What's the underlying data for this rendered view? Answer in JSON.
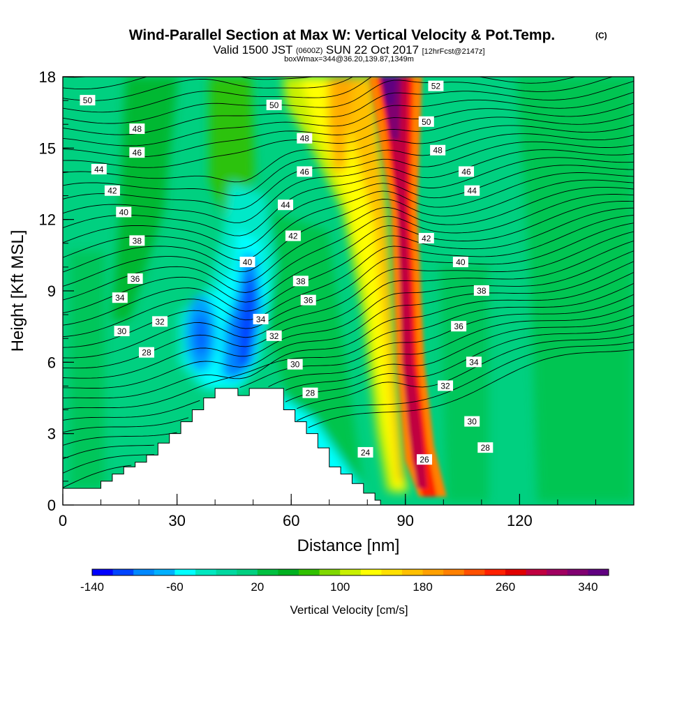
{
  "header": {
    "title": "Wind-Parallel Section at Max W: Vertical Velocity & Pot.Temp.",
    "copyright": "(C)",
    "valid_prefix": "Valid 1500 JST",
    "valid_utc": "(0600Z)",
    "valid_date": "SUN 22 Oct 2017",
    "forecast": "[12hrFcst@2147z]",
    "boxwmax": "boxWmax=344@36.20,139.87,1349m"
  },
  "chart_data": {
    "type": "heatmap",
    "title": "Wind-Parallel Section at Max W: Vertical Velocity & Pot.Temp.",
    "xlabel": "Distance [nm]",
    "ylabel": "Height [Kft MSL]",
    "xlim": [
      0,
      150
    ],
    "ylim": [
      0,
      18
    ],
    "x_ticks": [
      "0",
      "30",
      "60",
      "90",
      "120"
    ],
    "x_tick_values": [
      0,
      30,
      60,
      90,
      120
    ],
    "y_ticks": [
      "0",
      "3",
      "6",
      "9",
      "12",
      "15",
      "18"
    ],
    "y_tick_values": [
      0,
      3,
      6,
      9,
      12,
      15,
      18
    ],
    "colorbar": {
      "label": "Vertical Velocity [cm/s]",
      "levels_min": -140,
      "levels_step": 20,
      "tick_labels": [
        "-140",
        "-60",
        "20",
        "100",
        "180",
        "260",
        "340"
      ],
      "tick_values": [
        -140,
        -60,
        20,
        100,
        180,
        260,
        340
      ],
      "colors": [
        "#0000ff",
        "#0044ff",
        "#0088ff",
        "#00b0ff",
        "#00ffff",
        "#00e8c0",
        "#00d8a0",
        "#00d080",
        "#00c040",
        "#00b020",
        "#30c000",
        "#80d800",
        "#c8f000",
        "#ffff00",
        "#ffe000",
        "#ffc000",
        "#ffa000",
        "#ff8000",
        "#ff5000",
        "#ff2000",
        "#e00000",
        "#c00040",
        "#a00060",
        "#800070",
        "#600080"
      ]
    },
    "terrain_profile": {
      "x": [
        0,
        7,
        10,
        13,
        16,
        19,
        22,
        25,
        28,
        31,
        34,
        37,
        40,
        43,
        46,
        49,
        52,
        55,
        58,
        61,
        64,
        67,
        70,
        73,
        76,
        79,
        82
      ],
      "height": [
        0.7,
        0.7,
        1.0,
        1.3,
        1.6,
        1.8,
        2.1,
        2.6,
        3.0,
        3.5,
        4.0,
        4.5,
        4.9,
        4.9,
        4.6,
        4.9,
        4.9,
        4.9,
        4.0,
        3.5,
        3.0,
        2.4,
        1.6,
        1.3,
        0.9,
        0.5,
        0.2
      ]
    },
    "w_features": [
      {
        "name": "updraft",
        "x": 85,
        "z": 10,
        "value": 344
      },
      {
        "name": "downdraft",
        "x": 49,
        "z": 6,
        "value": -140
      },
      {
        "name": "downdraft",
        "x": 36,
        "z": 7,
        "value": -100
      }
    ],
    "theta_labels": [
      {
        "text": "50",
        "x": 6.5,
        "z": 17.0
      },
      {
        "text": "48",
        "x": 19.5,
        "z": 15.8
      },
      {
        "text": "46",
        "x": 19.5,
        "z": 14.8
      },
      {
        "text": "44",
        "x": 9.5,
        "z": 14.1
      },
      {
        "text": "42",
        "x": 13,
        "z": 13.2
      },
      {
        "text": "40",
        "x": 16,
        "z": 12.3
      },
      {
        "text": "38",
        "x": 19.5,
        "z": 11.1
      },
      {
        "text": "36",
        "x": 19,
        "z": 9.5
      },
      {
        "text": "34",
        "x": 15,
        "z": 8.7
      },
      {
        "text": "32",
        "x": 25.5,
        "z": 7.7
      },
      {
        "text": "30",
        "x": 15.5,
        "z": 7.3
      },
      {
        "text": "28",
        "x": 22,
        "z": 6.4
      },
      {
        "text": "50",
        "x": 55.5,
        "z": 16.8
      },
      {
        "text": "48",
        "x": 63.5,
        "z": 15.4
      },
      {
        "text": "46",
        "x": 63.5,
        "z": 14.0
      },
      {
        "text": "44",
        "x": 58.5,
        "z": 12.6
      },
      {
        "text": "42",
        "x": 60.5,
        "z": 11.3
      },
      {
        "text": "40",
        "x": 48.5,
        "z": 10.2
      },
      {
        "text": "38",
        "x": 62.5,
        "z": 9.4
      },
      {
        "text": "36",
        "x": 64.5,
        "z": 8.6
      },
      {
        "text": "34",
        "x": 52,
        "z": 7.8
      },
      {
        "text": "32",
        "x": 55.5,
        "z": 7.1
      },
      {
        "text": "30",
        "x": 61,
        "z": 5.9
      },
      {
        "text": "28",
        "x": 65,
        "z": 4.7
      },
      {
        "text": "24",
        "x": 79.5,
        "z": 2.2
      },
      {
        "text": "26",
        "x": 95,
        "z": 1.9
      },
      {
        "text": "52",
        "x": 98,
        "z": 17.6
      },
      {
        "text": "50",
        "x": 95.5,
        "z": 16.1
      },
      {
        "text": "48",
        "x": 98.5,
        "z": 14.9
      },
      {
        "text": "46",
        "x": 106,
        "z": 14.0
      },
      {
        "text": "44",
        "x": 107.5,
        "z": 13.2
      },
      {
        "text": "42",
        "x": 95.5,
        "z": 11.2
      },
      {
        "text": "40",
        "x": 104.5,
        "z": 10.2
      },
      {
        "text": "38",
        "x": 110,
        "z": 9.0
      },
      {
        "text": "36",
        "x": 104,
        "z": 7.5
      },
      {
        "text": "34",
        "x": 108,
        "z": 6.0
      },
      {
        "text": "32",
        "x": 100.5,
        "z": 5.0
      },
      {
        "text": "30",
        "x": 107.5,
        "z": 3.5
      },
      {
        "text": "28",
        "x": 111,
        "z": 2.4
      }
    ]
  }
}
